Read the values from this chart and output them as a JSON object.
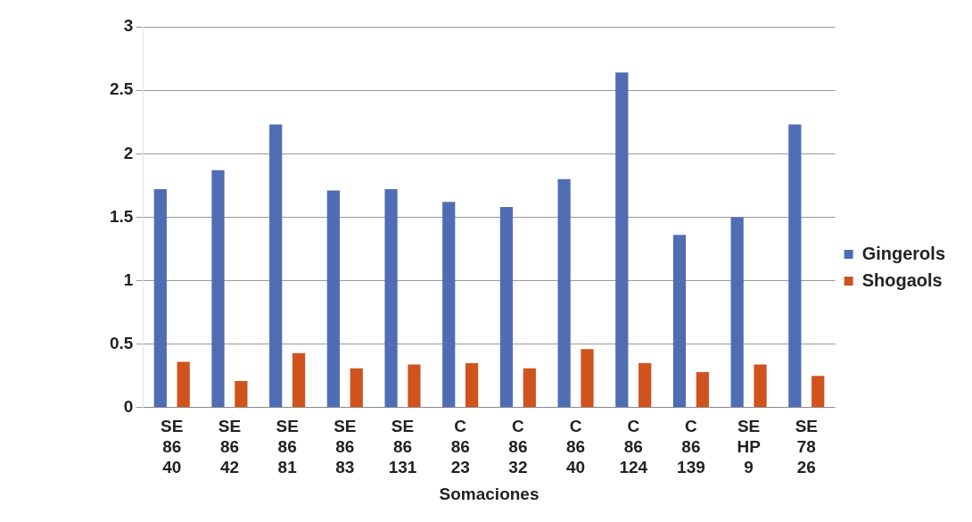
{
  "chart_data": {
    "type": "bar",
    "xlabel": "Somaciones",
    "categories": [
      "SE 86 40",
      "SE 86 42",
      "SE 86 81",
      "SE 86 83",
      "SE 86 131",
      "C 86 23",
      "C 86 32",
      "C 86 40",
      "C 86 124",
      "C 86 139",
      "SE HP 9",
      "SE 78 26"
    ],
    "series": [
      {
        "name": "Gingerols",
        "color": "#4f6db3",
        "values": [
          1.72,
          1.87,
          2.23,
          1.71,
          1.72,
          1.62,
          1.58,
          1.8,
          2.64,
          1.36,
          1.5,
          2.23
        ]
      },
      {
        "name": "Shogaols",
        "color": "#d0531e",
        "values": [
          0.36,
          0.21,
          0.43,
          0.31,
          0.34,
          0.35,
          0.31,
          0.46,
          0.35,
          0.28,
          0.34,
          0.25
        ]
      }
    ],
    "ylim": [
      0,
      3
    ],
    "yticks": [
      0,
      0.5,
      1,
      1.5,
      2,
      2.5,
      3
    ],
    "grid": "y",
    "legend": "right"
  }
}
